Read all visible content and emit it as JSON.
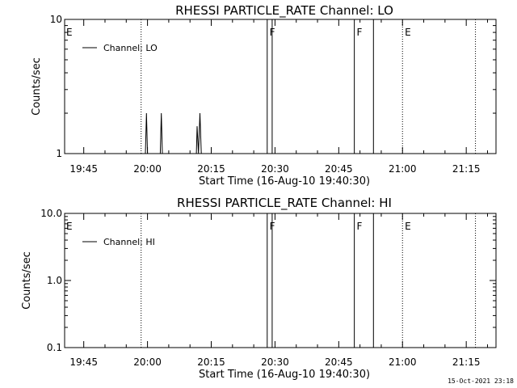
{
  "timestamp": "15-Oct-2021 23:18",
  "chart_data": [
    {
      "type": "line",
      "title": "RHESSI PARTICLE_RATE Channel: LO",
      "xlabel": "Start Time (16-Aug-10 19:40:30)",
      "ylabel": "Counts/sec",
      "yscale": "log",
      "ylim": [
        1,
        10
      ],
      "y_ticks": [
        "1",
        "10"
      ],
      "xlim": [
        "19:40:30",
        "21:22:00"
      ],
      "x_ticks": [
        "19:45",
        "20:00",
        "20:15",
        "20:30",
        "20:45",
        "21:00",
        "21:15"
      ],
      "legend": {
        "position": "top-left",
        "entries": [
          "Channel: LO"
        ]
      },
      "series": [
        {
          "name": "Channel: LO",
          "x": [
            "19:40:30",
            "19:59:30",
            "19:59:45",
            "20:00:00",
            "20:00:10",
            "20:03:00",
            "20:03:15",
            "20:03:30",
            "20:03:40",
            "20:11:30",
            "20:11:40",
            "20:12:00",
            "20:12:20",
            "20:12:40",
            "20:12:55",
            "21:21:30"
          ],
          "values": [
            1,
            1,
            2,
            1,
            1,
            1,
            2,
            1,
            1,
            1,
            1.6,
            1,
            2,
            1,
            1,
            1
          ]
        }
      ],
      "vertical_lines": [
        {
          "x": "19:58:30",
          "style": "dotted"
        },
        {
          "x": "20:28:10",
          "style": "solid"
        },
        {
          "x": "20:29:20",
          "style": "solid"
        },
        {
          "x": "20:48:40",
          "style": "solid"
        },
        {
          "x": "20:53:10",
          "style": "solid"
        },
        {
          "x": "21:00:00",
          "style": "dotted"
        },
        {
          "x": "21:17:10",
          "style": "dotted"
        }
      ],
      "markers": [
        {
          "x": "19:40:30",
          "label": "E"
        },
        {
          "x": "20:28:20",
          "label": "F"
        },
        {
          "x": "20:48:50",
          "label": "F"
        },
        {
          "x": "21:00:10",
          "label": "E"
        }
      ]
    },
    {
      "type": "line",
      "title": "RHESSI PARTICLE_RATE Channel: HI",
      "xlabel": "Start Time (16-Aug-10 19:40:30)",
      "ylabel": "Counts/sec",
      "yscale": "log",
      "ylim": [
        0.1,
        10
      ],
      "y_ticks": [
        "0.1",
        "1.0",
        "10.0"
      ],
      "xlim": [
        "19:40:30",
        "21:22:00"
      ],
      "x_ticks": [
        "19:45",
        "20:00",
        "20:15",
        "20:30",
        "20:45",
        "21:00",
        "21:15"
      ],
      "legend": {
        "position": "top-left",
        "entries": [
          "Channel: HI"
        ]
      },
      "series": [
        {
          "name": "Channel: HI",
          "x": [],
          "values": []
        }
      ],
      "vertical_lines": [
        {
          "x": "19:58:30",
          "style": "dotted"
        },
        {
          "x": "20:28:10",
          "style": "solid"
        },
        {
          "x": "20:29:20",
          "style": "solid"
        },
        {
          "x": "20:48:40",
          "style": "solid"
        },
        {
          "x": "20:53:10",
          "style": "solid"
        },
        {
          "x": "21:00:00",
          "style": "dotted"
        },
        {
          "x": "21:17:10",
          "style": "dotted"
        }
      ],
      "markers": [
        {
          "x": "19:40:30",
          "label": "E"
        },
        {
          "x": "20:28:20",
          "label": "F"
        },
        {
          "x": "20:48:50",
          "label": "F"
        },
        {
          "x": "21:00:10",
          "label": "E"
        }
      ]
    }
  ]
}
